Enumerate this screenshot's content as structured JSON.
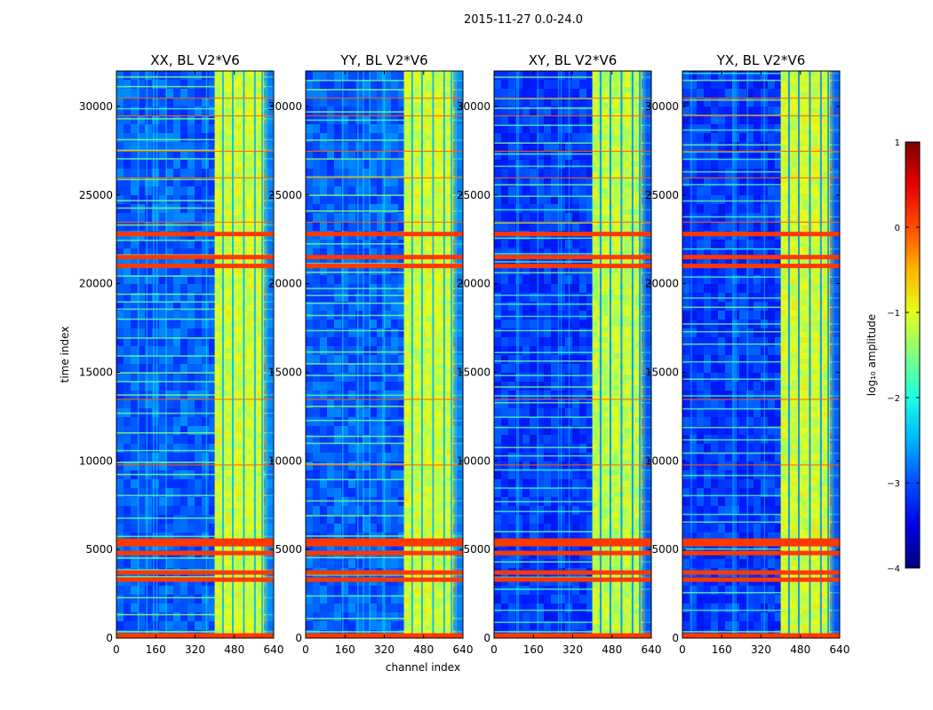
{
  "figure": {
    "suptitle": "2015-11-27 0.0-24.0"
  },
  "chart_data": [
    {
      "type": "heatmap",
      "title": "XX, BL V2*V6",
      "xlabel": "channel index",
      "ylabel": "time index",
      "xlim": [
        0,
        640
      ],
      "ylim": [
        0,
        32000
      ],
      "xticks": [
        0,
        160,
        320,
        480,
        640
      ],
      "yticks": [
        0,
        5000,
        10000,
        15000,
        20000,
        25000,
        30000
      ],
      "base_level_log10": -2.9,
      "rfi_channel_band": [
        400,
        600
      ],
      "band_level_log10": -1.1,
      "flagged_time_rows": [
        150,
        3300,
        3700,
        4800,
        5300,
        5500,
        21000,
        21500,
        22800
      ],
      "flagged_level_log10": 0.1
    },
    {
      "type": "heatmap",
      "title": "YY, BL V2*V6",
      "xlim": [
        0,
        640
      ],
      "ylim": [
        0,
        32000
      ],
      "xticks": [
        0,
        160,
        320,
        480,
        640
      ],
      "yticks": [
        0,
        5000,
        10000,
        15000,
        20000,
        25000,
        30000
      ],
      "base_level_log10": -2.9,
      "rfi_channel_band": [
        400,
        600
      ],
      "band_level_log10": -1.1,
      "flagged_time_rows": [
        150,
        3300,
        3700,
        4800,
        5300,
        5500,
        21000,
        21500,
        22800
      ],
      "flagged_level_log10": 0.1
    },
    {
      "type": "heatmap",
      "title": "XY, BL V2*V6",
      "xlim": [
        0,
        640
      ],
      "ylim": [
        0,
        32000
      ],
      "xticks": [
        0,
        160,
        320,
        480,
        640
      ],
      "yticks": [
        0,
        5000,
        10000,
        15000,
        20000,
        25000,
        30000
      ],
      "base_level_log10": -3.1,
      "rfi_channel_band": [
        400,
        600
      ],
      "band_level_log10": -1.2,
      "flagged_time_rows": [
        150,
        3300,
        3700,
        4800,
        5300,
        5500,
        21000,
        21500,
        22800
      ],
      "flagged_level_log10": 0.1
    },
    {
      "type": "heatmap",
      "title": "YX, BL V2*V6",
      "xlim": [
        0,
        640
      ],
      "ylim": [
        0,
        32000
      ],
      "xticks": [
        0,
        160,
        320,
        480,
        640
      ],
      "yticks": [
        0,
        5000,
        10000,
        15000,
        20000,
        25000,
        30000
      ],
      "base_level_log10": -3.1,
      "rfi_channel_band": [
        400,
        600
      ],
      "band_level_log10": -1.1,
      "flagged_time_rows": [
        150,
        3300,
        3700,
        4800,
        5300,
        5500,
        21000,
        21500,
        22800
      ],
      "flagged_level_log10": 0.1
    }
  ],
  "colorbar": {
    "label": "log₁₀ amplitude",
    "range": [
      -4,
      1
    ],
    "ticks": [
      1,
      0,
      -1,
      -2,
      -3,
      -4
    ],
    "tick_labels": [
      "1",
      "0",
      "−1",
      "−2",
      "−3",
      "−4"
    ],
    "colormap": "jet"
  }
}
